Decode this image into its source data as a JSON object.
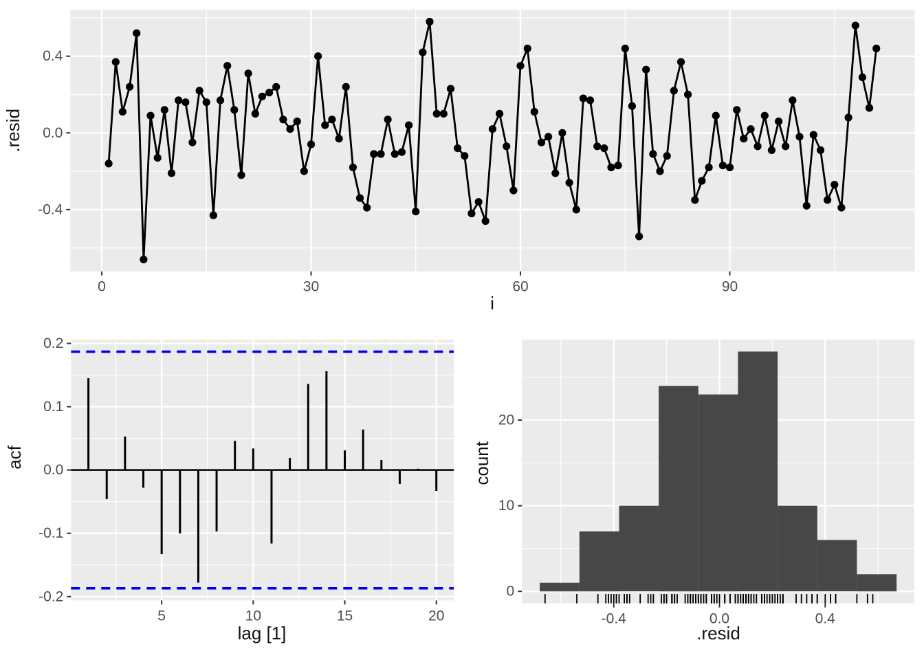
{
  "figure": {
    "background": "#ffffff",
    "panel_background": "#ebebeb",
    "grid_color": "#ffffff",
    "tick_color": "#333333",
    "tick_label_color": "#4d4d4d",
    "axis_title_color": "#141414"
  },
  "chart_data": [
    {
      "type": "line",
      "name": "residuals-vs-index",
      "xlabel": "i",
      "ylabel": ".resid",
      "xlim": [
        -4.5,
        116.5
      ],
      "ylim": [
        -0.722,
        0.642
      ],
      "grid": true,
      "point_color": "#000000",
      "line_color": "#000000",
      "xticks": {
        "values": [
          0,
          30,
          60,
          90
        ],
        "labels": [
          "0",
          "30",
          "60",
          "90"
        ]
      },
      "xminor": [
        15,
        45,
        75,
        105
      ],
      "yticks": {
        "values": [
          0.4,
          0.0,
          -0.4
        ],
        "labels": [
          "0.4",
          "0.0",
          "-0.4"
        ]
      },
      "yminor": [
        0.6,
        0.2,
        -0.2,
        -0.6
      ],
      "x_start": 1,
      "values": [
        -0.16,
        0.37,
        0.11,
        0.24,
        0.52,
        -0.66,
        0.09,
        -0.13,
        0.12,
        -0.21,
        0.17,
        0.16,
        -0.05,
        0.22,
        0.16,
        -0.43,
        0.17,
        0.35,
        0.12,
        -0.22,
        0.31,
        0.1,
        0.19,
        0.21,
        0.24,
        0.07,
        0.02,
        0.06,
        -0.2,
        -0.06,
        0.4,
        0.04,
        0.07,
        -0.03,
        0.24,
        -0.18,
        -0.34,
        -0.39,
        -0.11,
        -0.11,
        0.07,
        -0.11,
        -0.1,
        0.04,
        -0.41,
        0.42,
        0.58,
        0.1,
        0.1,
        0.23,
        -0.08,
        -0.12,
        -0.42,
        -0.36,
        -0.46,
        0.02,
        0.1,
        -0.07,
        -0.3,
        0.35,
        0.44,
        0.11,
        -0.05,
        -0.02,
        -0.21,
        0.0,
        -0.26,
        -0.4,
        0.18,
        0.17,
        -0.07,
        -0.08,
        -0.18,
        -0.17,
        0.44,
        0.14,
        -0.54,
        0.33,
        -0.11,
        -0.2,
        -0.12,
        0.22,
        0.37,
        0.2,
        -0.35,
        -0.25,
        -0.18,
        0.09,
        -0.17,
        -0.18,
        0.12,
        -0.03,
        0.02,
        -0.07,
        0.09,
        -0.09,
        0.06,
        -0.07,
        0.17,
        -0.02,
        -0.38,
        -0.01,
        -0.09,
        -0.35,
        -0.27,
        -0.39,
        0.08,
        0.56,
        0.29,
        0.13,
        0.44
      ]
    },
    {
      "type": "bar",
      "name": "acf",
      "xlabel": "lag [1]",
      "ylabel": "acf",
      "xlim": [
        0.05,
        20.95
      ],
      "ylim": [
        -0.206,
        0.206
      ],
      "grid": true,
      "spike_color": "#000000",
      "zero_line_color": "#000000",
      "ci_value": 0.187,
      "ci_color": "#0000ee",
      "ci_style": "dashed",
      "xticks": {
        "values": [
          5,
          10,
          15,
          20
        ],
        "labels": [
          "5",
          "10",
          "15",
          "20"
        ]
      },
      "xminor": [
        2.5,
        7.5,
        12.5,
        17.5
      ],
      "yticks": {
        "values": [
          0.2,
          0.1,
          0.0,
          -0.1,
          -0.2
        ],
        "labels": [
          "0.2",
          "0.1",
          "0.0",
          "-0.1",
          "-0.2"
        ]
      },
      "yminor": [
        0.15,
        0.05,
        -0.05,
        -0.15
      ],
      "lags": [
        1,
        2,
        3,
        4,
        5,
        6,
        7,
        8,
        9,
        10,
        11,
        12,
        13,
        14,
        15,
        16,
        17,
        18,
        19,
        20
      ],
      "values": [
        0.145,
        -0.046,
        0.053,
        -0.028,
        -0.133,
        -0.1,
        -0.178,
        -0.097,
        0.046,
        0.034,
        -0.116,
        0.019,
        0.136,
        0.156,
        0.031,
        0.064,
        0.016,
        -0.022,
        0.002,
        -0.033
      ]
    },
    {
      "type": "histogram",
      "name": "residual-histogram",
      "xlabel": ".resid",
      "ylabel": "count",
      "xlim": [
        -0.7475,
        0.7375
      ],
      "ylim": [
        -1.4,
        29.4
      ],
      "grid": true,
      "bar_color": "#474747",
      "bin_start": -0.68,
      "bin_width": 0.15,
      "counts": [
        1,
        7,
        10,
        24,
        23,
        28,
        10,
        6,
        2
      ],
      "xticks": {
        "values": [
          -0.4,
          0.0,
          0.4
        ],
        "labels": [
          "-0.4",
          "0.0",
          "0.4"
        ]
      },
      "xminor": [
        -0.6,
        -0.2,
        0.2,
        0.6
      ],
      "yticks": {
        "values": [
          0,
          10,
          20
        ],
        "labels": [
          "0",
          "10",
          "20"
        ]
      },
      "yminor": [
        5,
        15,
        25
      ],
      "rug": {
        "source": "chart_data.0.values",
        "color": "#000000"
      }
    }
  ]
}
